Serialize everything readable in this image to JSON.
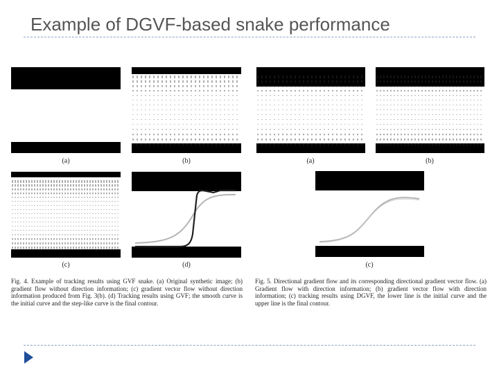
{
  "slide": {
    "title": "Example of DGVF-based snake performance"
  },
  "figure4": {
    "panel_labels": [
      "(a)",
      "(b)",
      "(c)",
      "(d)"
    ],
    "caption": "Fig. 4.   Example of tracking results using GVF snake. (a) Original synthetic image; (b) gradient flow without direction information; (c) gradient vector flow without direction information produced from Fig. 3(b). (d) Tracking results using GVF; the smooth curve is the initial curve and the step-like curve is the final contour."
  },
  "figure5": {
    "panel_labels": [
      "(a)",
      "(b)",
      "(c)"
    ],
    "caption": "Fig. 5.   Directional gradient flow and its corresponding directional gradient vector flow. (a) Gradient flow with direction information; (b) gradient vector flow with direction information; (c) tracking results using DGVF, the lower line is the initial curve and the upper line is the final contour."
  },
  "colors": {
    "title": "#555555",
    "rule": "#8aa4c0",
    "bullet": "#1f4e9a",
    "band": "#000000"
  },
  "icons": {
    "bullet": "triangle-bullet-icon"
  }
}
